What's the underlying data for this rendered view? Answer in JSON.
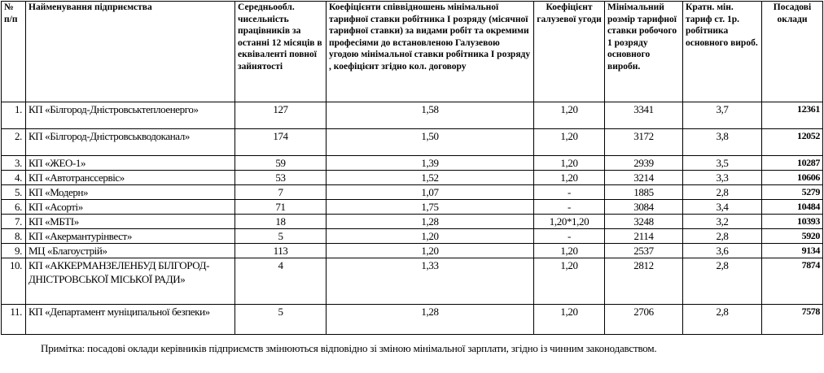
{
  "headers": {
    "no": "№ п/п",
    "name": "Найменування підприємства",
    "employees": "Середньообл. чисельність працівників  за останні 12 місяців в еквіваленті повної зайнятості",
    "coef": "Коефіцієнти співвідношень мінімальної тарифної ставки робітника І розряду (місячної тарифної ставки) за видами робіт та окремими професіями до встановленою Галузевою угодою мінімальної ставки робітника І розряду , коефіцієнт згідно кол. договору",
    "industry": "Коефіцієнт галузевої угоди",
    "min_rate": "Мінімальний розмір тарифної ставки робочого 1 розряду основного виробн.",
    "multiple": "Кратн. мін. тариф ст. 1р. робітника основного вироб.",
    "salary": "Посадові оклади"
  },
  "rows": [
    {
      "no": "1.",
      "name": "КП «Білгород-Дністровськтеплоенерго»",
      "employees": "127",
      "coef": "1,58",
      "industry": "1,20",
      "min_rate": "3341",
      "multiple": "3,7",
      "salary": "12361"
    },
    {
      "no": "2.",
      "name": "КП «Білгород-Дністровськводоканал»",
      "employees": "174",
      "coef": "1,50",
      "industry": "1,20",
      "min_rate": "3172",
      "multiple": "3,8",
      "salary": "12052"
    },
    {
      "no": "3.",
      "name": "КП «ЖЕО-1»",
      "employees": "59",
      "coef": "1,39",
      "industry": "1,20",
      "min_rate": "2939",
      "multiple": "3,5",
      "salary": "10287"
    },
    {
      "no": "4.",
      "name": "КП «Автотранссервіс»",
      "employees": "53",
      "coef": "1,52",
      "industry": "1,20",
      "min_rate": "3214",
      "multiple": "3,3",
      "salary": "10606"
    },
    {
      "no": "5.",
      "name": "КП «Модерн»",
      "employees": "7",
      "coef": "1,07",
      "industry": "-",
      "min_rate": "1885",
      "multiple": "2,8",
      "salary": "5279"
    },
    {
      "no": "6.",
      "name": "КП «Асорті»",
      "employees": "71",
      "coef": "1,75",
      "industry": "-",
      "min_rate": "3084",
      "multiple": "3,4",
      "salary": "10484"
    },
    {
      "no": "7.",
      "name": "КП «МБТІ»",
      "employees": "18",
      "coef": "1,28",
      "industry": "1,20*1,20",
      "min_rate": "3248",
      "multiple": "3,2",
      "salary": "10393"
    },
    {
      "no": "8.",
      "name": "КП «Акермантурінвест»",
      "employees": "5",
      "coef": "1,20",
      "industry": "-",
      "min_rate": "2114",
      "multiple": "2,8",
      "salary": "5920"
    },
    {
      "no": "9.",
      "name": "МЦ «Благоустрій»",
      "employees": "113",
      "coef": "1,20",
      "industry": "1,20",
      "min_rate": "2537",
      "multiple": "3,6",
      "salary": "9134"
    },
    {
      "no": "10.",
      "name": "КП «АККЕРМАНЗЕЛЕНБУД  БІЛГОРОД-ДНІСТРОВСЬКОЇ МІСЬКОЇ РАДИ»",
      "employees": "4",
      "coef": "1,33",
      "industry": "1,20",
      "min_rate": "2812",
      "multiple": "2,8",
      "salary": "7874"
    },
    {
      "no": "11.",
      "name": "КП «Департамент муніципальної  безпеки»",
      "employees": "5",
      "coef": "1,28",
      "industry": "1,20",
      "min_rate": "2706",
      "multiple": "2,8",
      "salary": "7578"
    }
  ],
  "note": "Примітка: посадові оклади керівників підприємств змінюються відповідно зі зміною мінімальної зарплати, згідно із чинним законодавством."
}
